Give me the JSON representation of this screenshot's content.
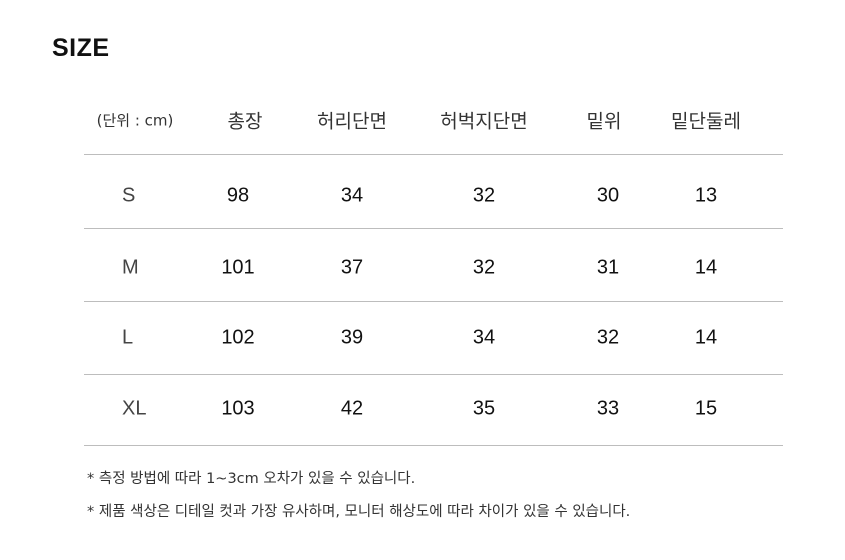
{
  "title": "SIZE",
  "table": {
    "unit_label": "(단위 : cm)",
    "headers": [
      "총장",
      "허리단면",
      "허벅지단면",
      "밑위",
      "밑단둘레"
    ],
    "rows": [
      {
        "size": "S",
        "values": [
          "98",
          "34",
          "32",
          "30",
          "13"
        ]
      },
      {
        "size": "M",
        "values": [
          "101",
          "37",
          "32",
          "31",
          "14"
        ]
      },
      {
        "size": "L",
        "values": [
          "102",
          "39",
          "34",
          "32",
          "14"
        ]
      },
      {
        "size": "XL",
        "values": [
          "103",
          "42",
          "35",
          "33",
          "15"
        ]
      }
    ]
  },
  "notes": [
    "* 측정 방법에 따라 1~3cm 오차가 있을 수 있습니다.",
    "* 제품 색상은 디테일 컷과 가장 유사하며, 모니터 해상도에 따라 차이가 있을 수 있습니다."
  ]
}
